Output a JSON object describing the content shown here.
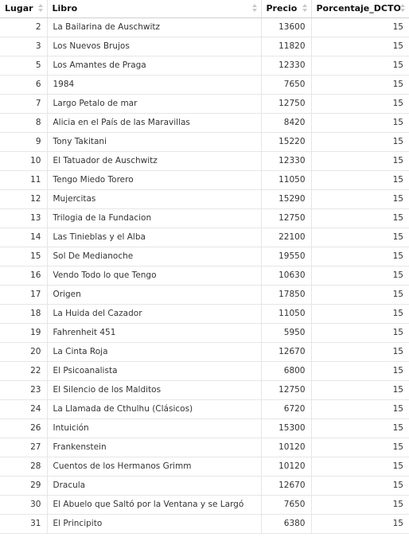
{
  "table": {
    "columns": [
      "Lugar",
      "Libro",
      "Precio",
      "Porcentaje_DCTO"
    ],
    "rows": [
      [
        "2",
        "La Bailarina de Auschwitz",
        "13600",
        "15"
      ],
      [
        "3",
        "Los Nuevos Brujos",
        "11820",
        "15"
      ],
      [
        "5",
        "Los Amantes de Praga",
        "12330",
        "15"
      ],
      [
        "6",
        "1984",
        "7650",
        "15"
      ],
      [
        "7",
        "Largo Petalo de mar",
        "12750",
        "15"
      ],
      [
        "8",
        "Alicia en el País de las Maravillas",
        "8420",
        "15"
      ],
      [
        "9",
        "Tony Takitani",
        "15220",
        "15"
      ],
      [
        "10",
        "El Tatuador de Auschwitz",
        "12330",
        "15"
      ],
      [
        "11",
        "Tengo Miedo Torero",
        "11050",
        "15"
      ],
      [
        "12",
        "Mujercitas",
        "15290",
        "15"
      ],
      [
        "13",
        "Trilogia de la Fundacion",
        "12750",
        "15"
      ],
      [
        "14",
        "Las Tinieblas y el Alba",
        "22100",
        "15"
      ],
      [
        "15",
        "Sol De Medianoche",
        "19550",
        "15"
      ],
      [
        "16",
        "Vendo Todo lo que Tengo",
        "10630",
        "15"
      ],
      [
        "17",
        "Origen",
        "17850",
        "15"
      ],
      [
        "18",
        "La Huida del Cazador",
        "11050",
        "15"
      ],
      [
        "19",
        "Fahrenheit 451",
        "5950",
        "15"
      ],
      [
        "20",
        "La Cinta Roja",
        "12670",
        "15"
      ],
      [
        "22",
        "El Psicoanalista",
        "6800",
        "15"
      ],
      [
        "23",
        "El Silencio de los Malditos",
        "12750",
        "15"
      ],
      [
        "24",
        "La Llamada de Cthulhu (Clásicos)",
        "6720",
        "15"
      ],
      [
        "26",
        "Intuición",
        "15300",
        "15"
      ],
      [
        "27",
        "Frankenstein",
        "10120",
        "15"
      ],
      [
        "28",
        "Cuentos de los Hermanos Grimm",
        "10120",
        "15"
      ],
      [
        "29",
        "Dracula",
        "12670",
        "15"
      ],
      [
        "30",
        "El Abuelo que Saltó por la Ventana y se Largó",
        "7650",
        "15"
      ],
      [
        "31",
        "El Principito",
        "6380",
        "15"
      ]
    ]
  }
}
